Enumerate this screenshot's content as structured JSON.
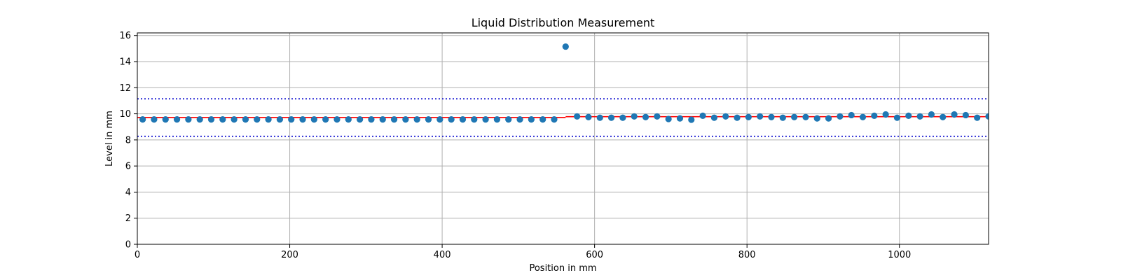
{
  "chart_data": {
    "type": "scatter",
    "title": "Liquid Distribution Measurement",
    "xlabel": "Position in mm",
    "ylabel": "Level in mm",
    "xlim": [
      0,
      1117
    ],
    "ylim": [
      0,
      16.2
    ],
    "xticks": [
      0,
      200,
      400,
      600,
      800,
      1000
    ],
    "yticks": [
      0,
      2,
      4,
      6,
      8,
      10,
      12,
      14,
      16
    ],
    "grid": true,
    "colors": {
      "points": "#1f77b4",
      "mean_line": "#ff0000",
      "limit_lines": "#0000cc",
      "grid": "#b0b0b0"
    },
    "series": [
      {
        "kind": "points",
        "x": [
          7,
          22,
          37,
          52,
          67,
          82,
          97,
          112,
          127,
          142,
          157,
          172,
          187,
          202,
          217,
          232,
          247,
          262,
          277,
          292,
          307,
          322,
          337,
          352,
          367,
          382,
          397,
          412,
          427,
          442,
          457,
          472,
          487,
          502,
          517,
          532,
          547,
          562,
          577,
          592,
          607,
          622,
          637,
          652,
          667,
          682,
          697,
          712,
          727,
          742,
          757,
          772,
          787,
          802,
          817,
          832,
          847,
          862,
          877,
          892,
          907,
          922,
          937,
          952,
          967,
          982,
          997,
          1012,
          1027,
          1042,
          1057,
          1072,
          1087,
          1102,
          1117
        ],
        "y": [
          9.57,
          9.57,
          9.57,
          9.57,
          9.57,
          9.57,
          9.57,
          9.57,
          9.57,
          9.57,
          9.57,
          9.57,
          9.57,
          9.57,
          9.57,
          9.57,
          9.57,
          9.57,
          9.57,
          9.57,
          9.57,
          9.57,
          9.57,
          9.57,
          9.57,
          9.57,
          9.57,
          9.57,
          9.57,
          9.57,
          9.57,
          9.57,
          9.57,
          9.57,
          9.57,
          9.57,
          9.57,
          15.15,
          9.8,
          9.75,
          9.7,
          9.7,
          9.7,
          9.8,
          9.75,
          9.8,
          9.6,
          9.65,
          9.55,
          9.85,
          9.7,
          9.8,
          9.7,
          9.75,
          9.8,
          9.75,
          9.7,
          9.75,
          9.75,
          9.65,
          9.65,
          9.8,
          9.9,
          9.75,
          9.85,
          9.95,
          9.7,
          9.85,
          9.8,
          9.95,
          9.75,
          9.95,
          9.9,
          9.7,
          9.8
        ]
      },
      {
        "kind": "mean_line",
        "segments": [
          {
            "x": [
              0,
              562
            ],
            "y": 9.72
          },
          {
            "x": [
              562,
              1117
            ],
            "y": 9.78
          }
        ]
      },
      {
        "kind": "limit_lines",
        "values": [
          11.15,
          8.28
        ]
      }
    ]
  }
}
